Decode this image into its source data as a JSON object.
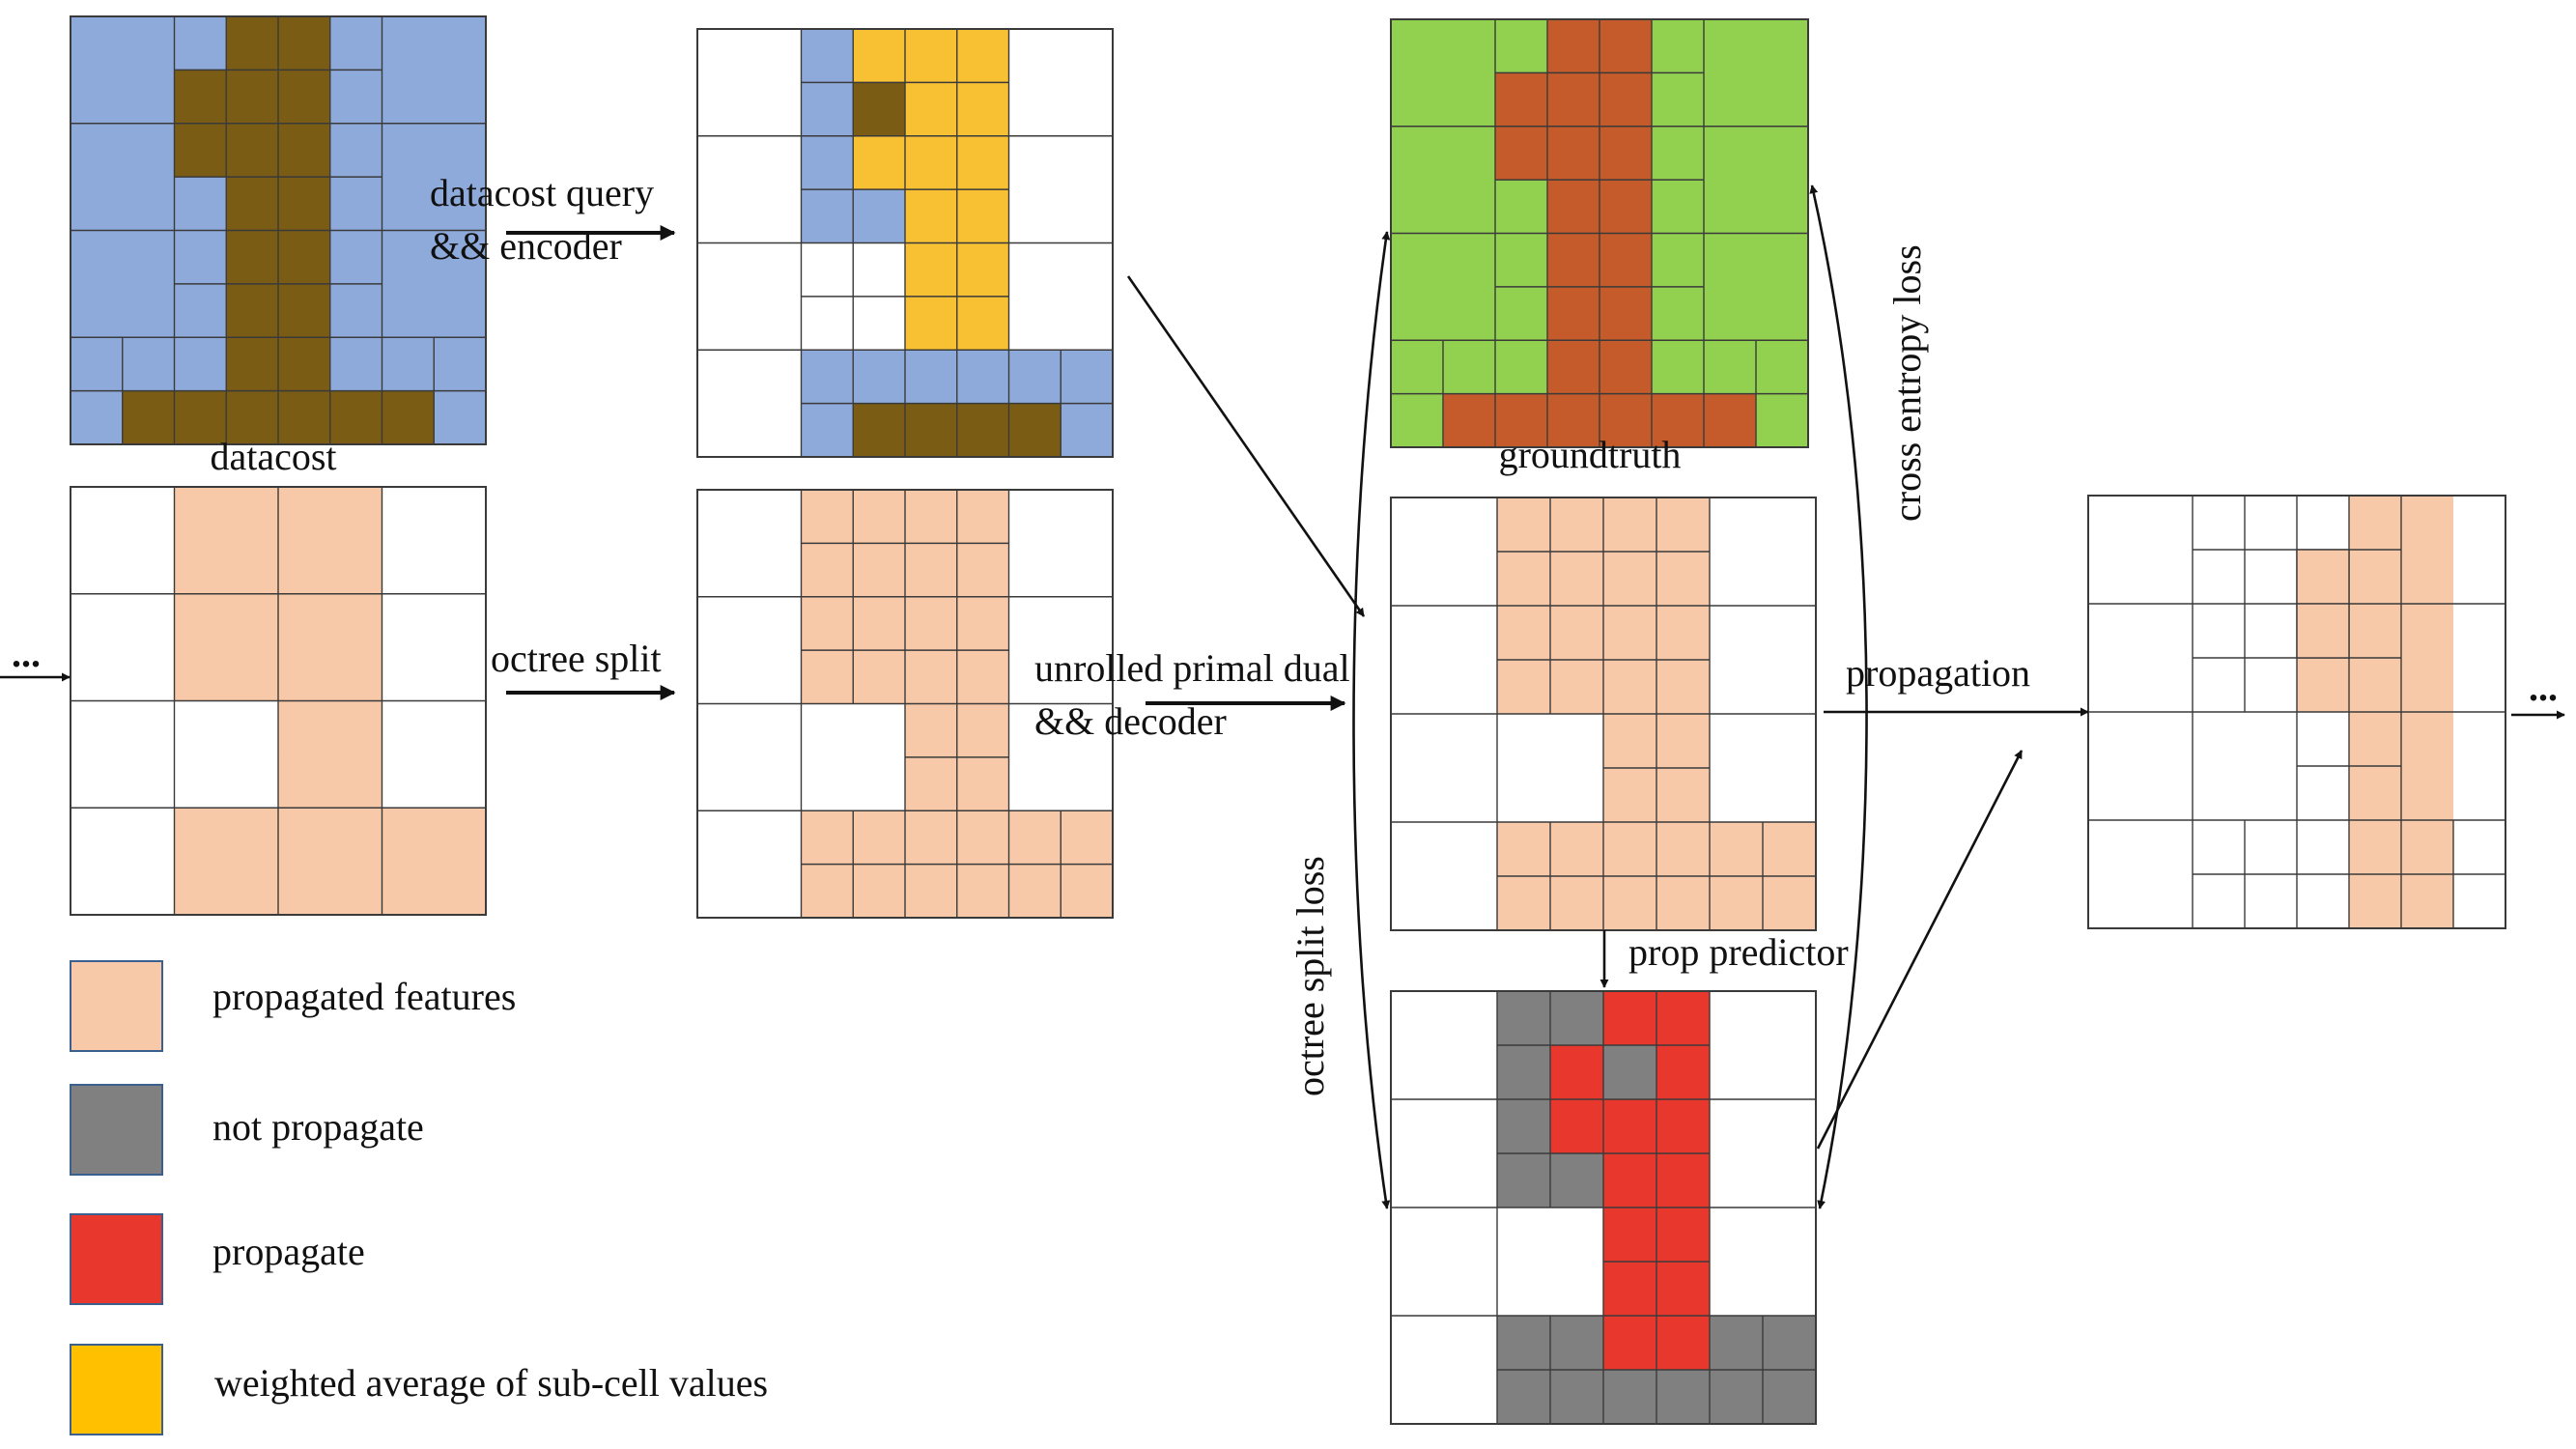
{
  "colors": {
    "datacost_bg": "#8eaadb",
    "datacost_fg": "#7b5c14",
    "encoded_mid": "#f7c133",
    "feature": "#f7c9a8",
    "groundtruth_bg": "#92d050",
    "groundtruth_fg": "#c55a2a",
    "not_propagate": "#808080",
    "propagate": "#e8372c",
    "weighted_avg": "#ffc000",
    "empty": "#ffffff",
    "line": "#3a3a3a"
  },
  "labels": {
    "datacost": "datacost",
    "groundtruth": "groundtruth",
    "datacost_query_line1": "datacost query",
    "datacost_query_line2": "&& encoder",
    "octree_split": "octree split",
    "unrolled_line1": "unrolled primal dual",
    "unrolled_line2": "&& decoder",
    "propagation": "propagation",
    "prop_predictor": "prop predictor",
    "cross_entropy_loss": "cross entropy loss",
    "octree_split_loss": "octree split loss",
    "ellipsis_left": "...",
    "ellipsis_right": "..."
  },
  "legend": [
    {
      "label": "propagated features",
      "color_key": "feature"
    },
    {
      "label": "not propagate",
      "color_key": "not_propagate"
    },
    {
      "label": "propagate",
      "color_key": "propagate"
    },
    {
      "label": "weighted average of sub-cell values",
      "color_key": "weighted_avg"
    }
  ]
}
